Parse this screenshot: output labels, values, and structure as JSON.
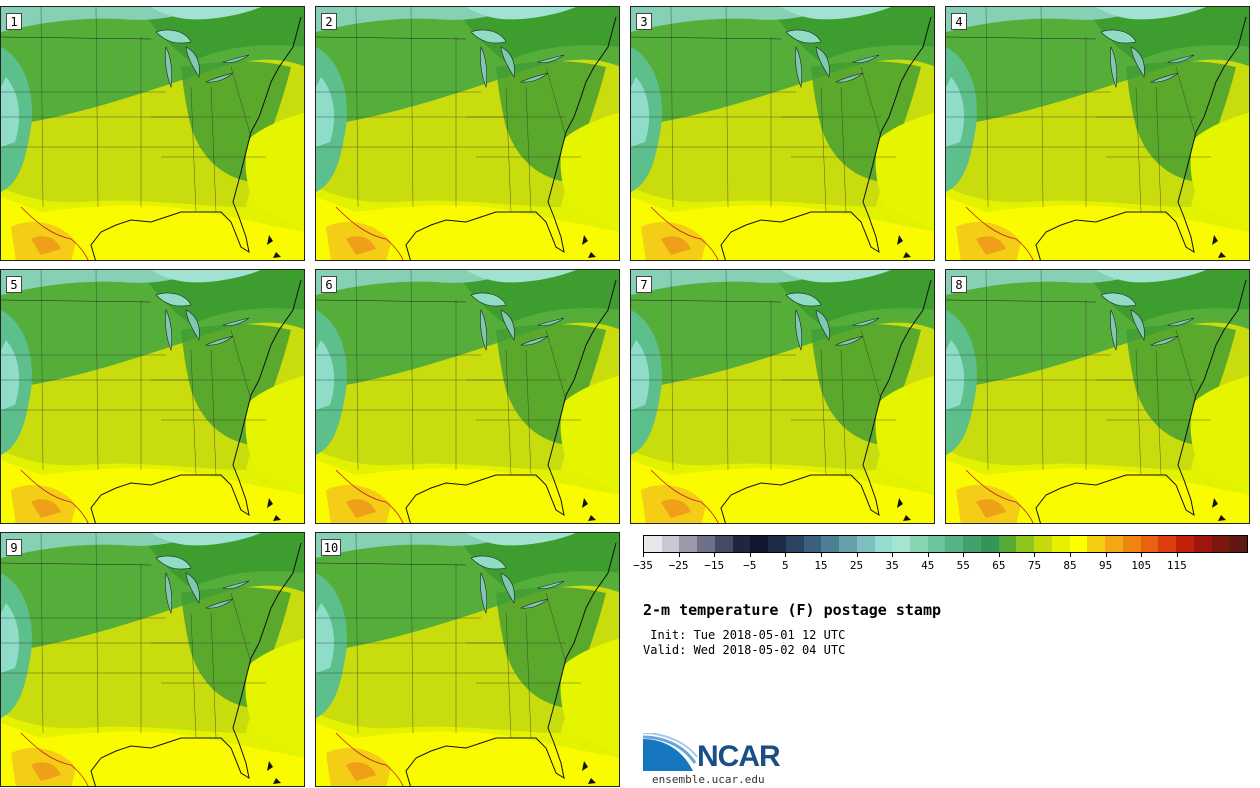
{
  "members": [
    "1",
    "2",
    "3",
    "4",
    "5",
    "6",
    "7",
    "8",
    "9",
    "10"
  ],
  "colorbar": {
    "colors": [
      "#e8e8ec",
      "#c8c8d2",
      "#9a9aac",
      "#6e7088",
      "#464a66",
      "#1e2640",
      "#0f1830",
      "#1c2c48",
      "#2a4462",
      "#3b5f7c",
      "#4f7f95",
      "#65a0ab",
      "#7cbfbf",
      "#97dad0",
      "#a4e4d2",
      "#86d6b0",
      "#6cc59a",
      "#56b385",
      "#40a16c",
      "#349558",
      "#57aa34",
      "#8ec41e",
      "#c5da0e",
      "#e6f000",
      "#ffff00",
      "#f6cc12",
      "#f5a614",
      "#f08412",
      "#e9620f",
      "#dc3e0c",
      "#c2220c",
      "#9f160e",
      "#7c1610",
      "#5e1a12"
    ],
    "labels": [
      "−35",
      "−25",
      "−15",
      "−5",
      "5",
      "15",
      "25",
      "35",
      "45",
      "55",
      "65",
      "75",
      "85",
      "95",
      "105",
      "115"
    ]
  },
  "title": "2-m temperature (F) postage stamp",
  "init": " Init: Tue 2018-05-01 12 UTC",
  "valid": "Valid: Wed 2018-05-02 04 UTC",
  "logo_text": "NCAR",
  "url": "ensemble.ucar.edu",
  "colors": {
    "ocean_warm": "#e5f500",
    "gulf": "#fbfb00",
    "cool_green": "#3d9d2f",
    "cold_cyan": "#8fdcc8"
  }
}
